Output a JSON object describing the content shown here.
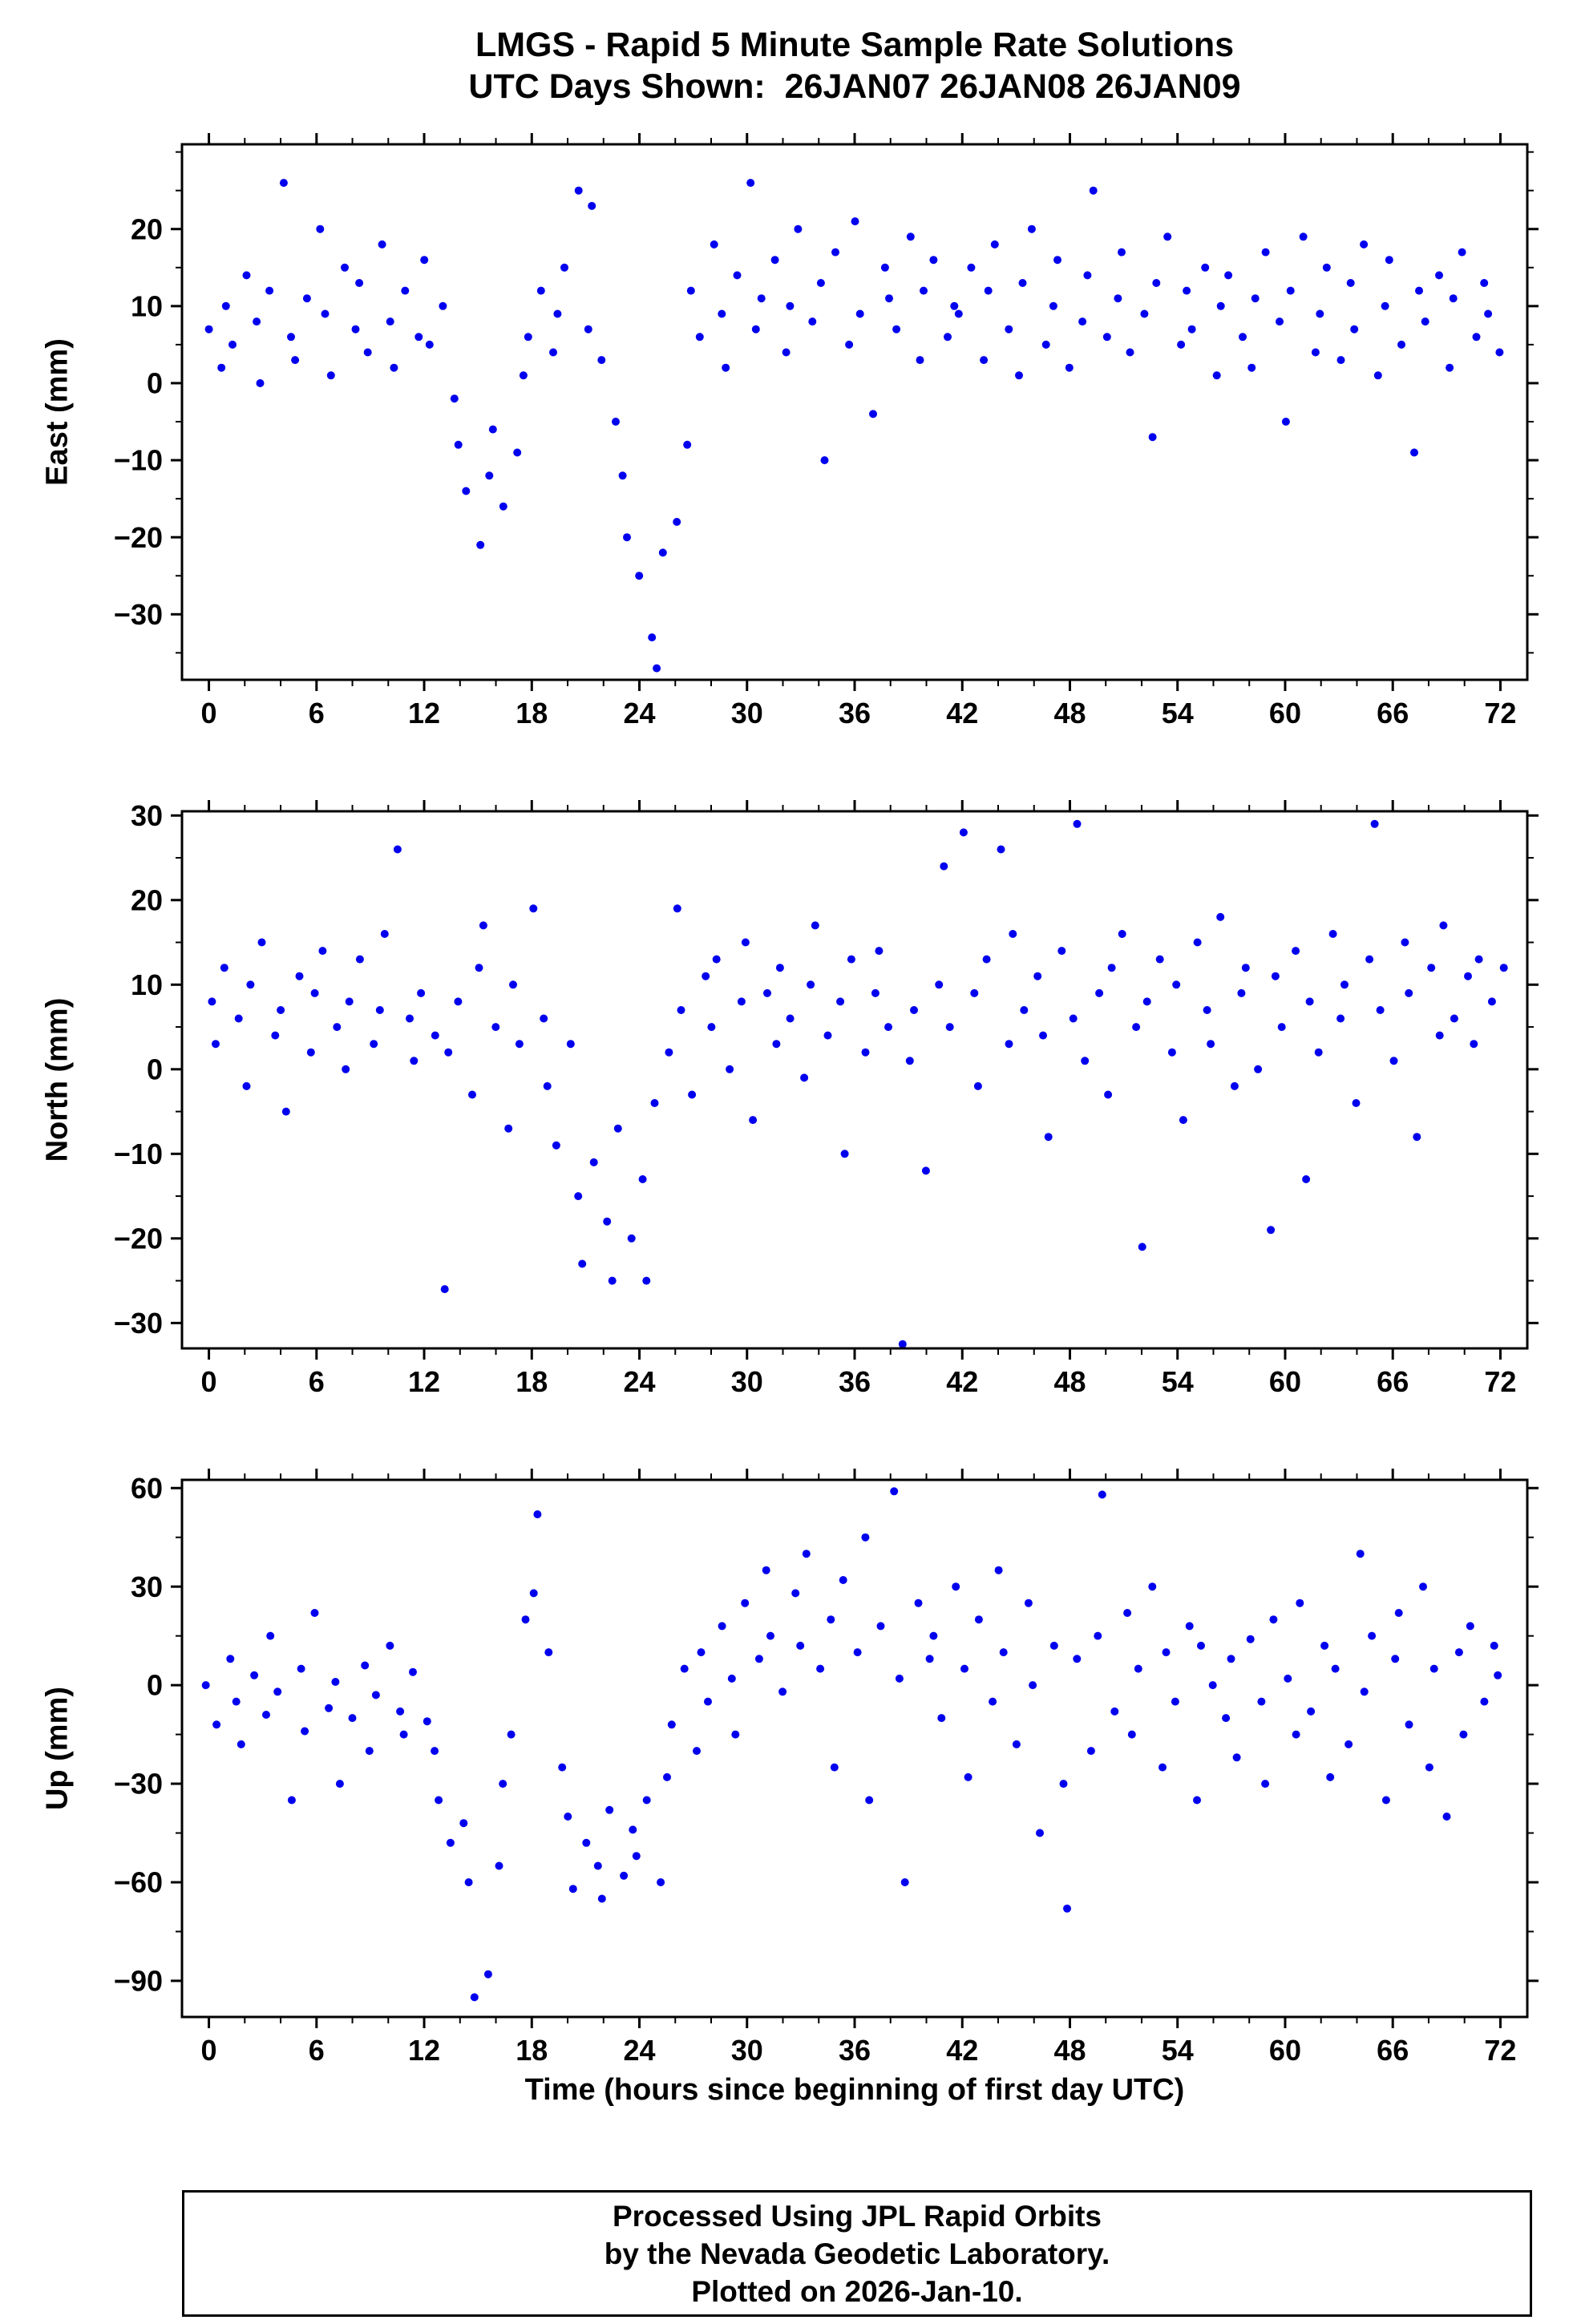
{
  "title": {
    "line1": "LMGS - Rapid 5 Minute Sample Rate Solutions",
    "line2": "UTC Days Shown:  26JAN07 26JAN08 26JAN09"
  },
  "axis": {
    "xlabel": "Time (hours since beginning of first day UTC)"
  },
  "footer": {
    "line1": "Processed Using JPL Rapid Orbits",
    "line2": "by the Nevada Geodetic Laboratory.",
    "line3": "Plotted on 2026-Jan-10."
  },
  "colors": {
    "marker": "#0000ee",
    "frame": "#000000",
    "background": "#ffffff"
  },
  "chart_data": [
    {
      "type": "scatter",
      "name": "East",
      "ylabel": "East (mm)",
      "xlim": [
        -1.5,
        73.5
      ],
      "ylim": [
        -38.5,
        31
      ],
      "xticks": [
        0,
        6,
        12,
        18,
        24,
        30,
        36,
        42,
        48,
        54,
        60,
        66,
        72
      ],
      "yticks": [
        -30,
        -20,
        -10,
        0,
        10,
        20
      ],
      "x_minor_step": 2,
      "y_minor_step": 5,
      "x_start": 0,
      "x_step": 0.5,
      "y": [
        7,
        2,
        10,
        5,
        14,
        8,
        0,
        12,
        26,
        6,
        3,
        11,
        20,
        9,
        1,
        15,
        7,
        13,
        4,
        18,
        8,
        2,
        12,
        6,
        16,
        5,
        10,
        -2,
        -8,
        -14,
        -21,
        -12,
        -6,
        -16,
        -9,
        1,
        6,
        12,
        4,
        9,
        15,
        25,
        7,
        23,
        3,
        -5,
        -12,
        -20,
        -25,
        -33,
        -37,
        -22,
        -18,
        -8,
        12,
        6,
        18,
        9,
        2,
        14,
        26,
        7,
        11,
        16,
        4,
        10,
        20,
        8,
        13,
        -10,
        17,
        5,
        21,
        9,
        -4,
        15,
        11,
        7,
        19,
        3,
        12,
        16,
        6,
        10,
        9,
        15,
        3,
        12,
        18,
        7,
        1,
        13,
        20,
        5,
        10,
        16,
        2,
        8,
        14,
        25,
        6,
        11,
        17,
        4,
        9,
        -7,
        13,
        19,
        5,
        12,
        7,
        15,
        1,
        10,
        14,
        6,
        2,
        11,
        17,
        8,
        -5,
        12,
        19,
        4,
        9,
        15,
        3,
        13,
        7,
        18,
        1,
        10,
        16,
        5,
        -9,
        12,
        8,
        14,
        2,
        11,
        17,
        6,
        13,
        9,
        4
      ]
    },
    {
      "type": "scatter",
      "name": "North",
      "ylabel": "North (mm)",
      "xlim": [
        -1.5,
        73.5
      ],
      "ylim": [
        -33,
        30.5
      ],
      "xticks": [
        0,
        6,
        12,
        18,
        24,
        30,
        36,
        42,
        48,
        54,
        60,
        66,
        72
      ],
      "yticks": [
        -30,
        -20,
        -10,
        0,
        10,
        20,
        30
      ],
      "x_minor_step": 2,
      "y_minor_step": 5,
      "x_start": 0,
      "x_step": 0.5,
      "y": [
        8,
        3,
        12,
        6,
        -2,
        10,
        15,
        4,
        7,
        -5,
        11,
        2,
        9,
        14,
        5,
        0,
        8,
        13,
        3,
        7,
        16,
        26,
        6,
        1,
        9,
        4,
        -26,
        2,
        8,
        -3,
        12,
        17,
        5,
        -7,
        10,
        3,
        19,
        6,
        -2,
        -9,
        3,
        -15,
        -23,
        -11,
        -18,
        -25,
        -7,
        -20,
        -13,
        -25,
        -4,
        2,
        19,
        7,
        -3,
        11,
        5,
        13,
        0,
        8,
        15,
        -6,
        9,
        3,
        12,
        6,
        -1,
        10,
        17,
        4,
        8,
        -10,
        13,
        2,
        9,
        14,
        5,
        -32.5,
        1,
        7,
        -12,
        10,
        24,
        5,
        28,
        9,
        -2,
        13,
        26,
        3,
        16,
        7,
        11,
        4,
        -8,
        14,
        6,
        29,
        1,
        9,
        -3,
        12,
        16,
        5,
        -21,
        8,
        13,
        2,
        10,
        -6,
        15,
        7,
        3,
        18,
        -2,
        9,
        12,
        0,
        -19,
        11,
        5,
        14,
        -13,
        8,
        2,
        16,
        6,
        10,
        -4,
        13,
        29,
        7,
        1,
        15,
        9,
        -8,
        12,
        4,
        17,
        6,
        11,
        3,
        13,
        8,
        12
      ]
    },
    {
      "type": "scatter",
      "name": "Up",
      "ylabel": "Up (mm)",
      "xlim": [
        -1.5,
        73.5
      ],
      "ylim": [
        -101,
        62.5
      ],
      "xticks": [
        0,
        6,
        12,
        18,
        24,
        30,
        36,
        42,
        48,
        54,
        60,
        66,
        72
      ],
      "yticks": [
        -90,
        -60,
        -30,
        0,
        30,
        60
      ],
      "x_minor_step": 2,
      "y_minor_step": 15,
      "x_start": 0,
      "x_step": 0.5,
      "y": [
        0,
        -12,
        8,
        -5,
        -18,
        3,
        -9,
        15,
        -2,
        -35,
        5,
        -14,
        22,
        -7,
        1,
        -30,
        -10,
        6,
        -20,
        -3,
        12,
        -8,
        -15,
        4,
        -11,
        -20,
        -35,
        -48,
        -42,
        -60,
        -95,
        -88,
        -55,
        -30,
        -15,
        20,
        28,
        52,
        10,
        -25,
        -40,
        -62,
        -48,
        -55,
        -65,
        -38,
        -58,
        -44,
        -52,
        -35,
        -60,
        -28,
        -12,
        5,
        -20,
        10,
        -5,
        18,
        2,
        -15,
        25,
        8,
        35,
        15,
        -2,
        28,
        12,
        40,
        5,
        20,
        -25,
        32,
        10,
        45,
        -35,
        18,
        59,
        2,
        -60,
        25,
        8,
        15,
        -10,
        30,
        5,
        -28,
        20,
        -5,
        35,
        10,
        -18,
        25,
        0,
        -45,
        12,
        -30,
        -68,
        8,
        -20,
        15,
        58,
        -8,
        22,
        -15,
        5,
        30,
        -25,
        10,
        -5,
        18,
        -35,
        12,
        0,
        -10,
        8,
        -22,
        14,
        -5,
        -30,
        20,
        2,
        -15,
        25,
        -8,
        12,
        -28,
        5,
        -18,
        40,
        -2,
        15,
        -35,
        8,
        22,
        -12,
        30,
        -25,
        5,
        -40,
        10,
        -15,
        18,
        -5,
        12,
        3
      ]
    }
  ]
}
